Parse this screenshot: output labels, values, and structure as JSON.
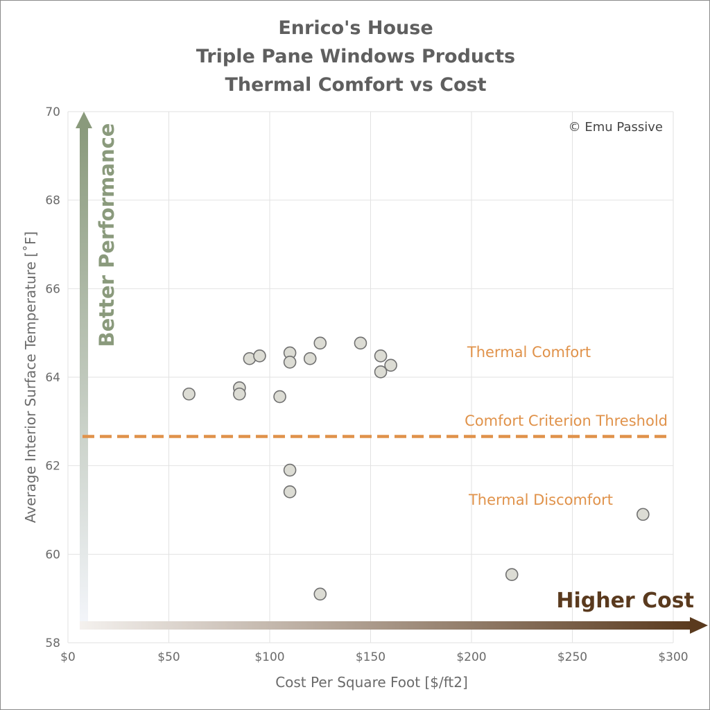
{
  "chart_data": {
    "type": "scatter",
    "title_lines": [
      "Enrico's House",
      "Triple Pane Windows Products",
      "Thermal Comfort vs Cost"
    ],
    "xlabel": "Cost Per Square Foot [$/ft2]",
    "ylabel": "Average Interior Surface Temperature [˚F]",
    "xlim": [
      0,
      300
    ],
    "ylim": [
      58,
      70
    ],
    "x_ticks": [
      0,
      50,
      100,
      150,
      200,
      250,
      300
    ],
    "x_tick_labels": [
      "$0",
      "$50",
      "$100",
      "$150",
      "$200",
      "$250",
      "$300"
    ],
    "y_ticks": [
      58,
      60,
      62,
      64,
      66,
      68,
      70
    ],
    "y_tick_labels": [
      "58",
      "60",
      "62",
      "64",
      "66",
      "68",
      "70"
    ],
    "grid": true,
    "points": [
      {
        "x": 60,
        "y": 63.62
      },
      {
        "x": 85,
        "y": 63.76
      },
      {
        "x": 85,
        "y": 63.62
      },
      {
        "x": 90,
        "y": 64.42
      },
      {
        "x": 95,
        "y": 64.48
      },
      {
        "x": 105,
        "y": 63.56
      },
      {
        "x": 110,
        "y": 64.55
      },
      {
        "x": 110,
        "y": 64.34
      },
      {
        "x": 120,
        "y": 64.42
      },
      {
        "x": 125,
        "y": 64.77
      },
      {
        "x": 145,
        "y": 64.77
      },
      {
        "x": 155,
        "y": 64.48
      },
      {
        "x": 155,
        "y": 64.12
      },
      {
        "x": 160,
        "y": 64.27
      },
      {
        "x": 110,
        "y": 61.9
      },
      {
        "x": 110,
        "y": 61.41
      },
      {
        "x": 125,
        "y": 59.1
      },
      {
        "x": 220,
        "y": 59.54
      },
      {
        "x": 285,
        "y": 60.9
      }
    ],
    "threshold": {
      "y": 62.66,
      "label": "Comfort Criterion Threshold",
      "style": "dashed"
    },
    "annotations": {
      "comfort": "Thermal Comfort",
      "discomfort": "Thermal Discomfort",
      "copyright": "© Emu Passive",
      "y_arrow": "Better Performance",
      "x_arrow": "Higher Cost"
    },
    "colors": {
      "marker_fill": "#dcdcd4",
      "marker_stroke": "#707070",
      "threshold": "#e0924a",
      "annotation": "#e0924a",
      "grid": "#e2e2e2",
      "y_arrow": "#8a9a7c",
      "x_arrow": "#5a3a1e"
    }
  }
}
